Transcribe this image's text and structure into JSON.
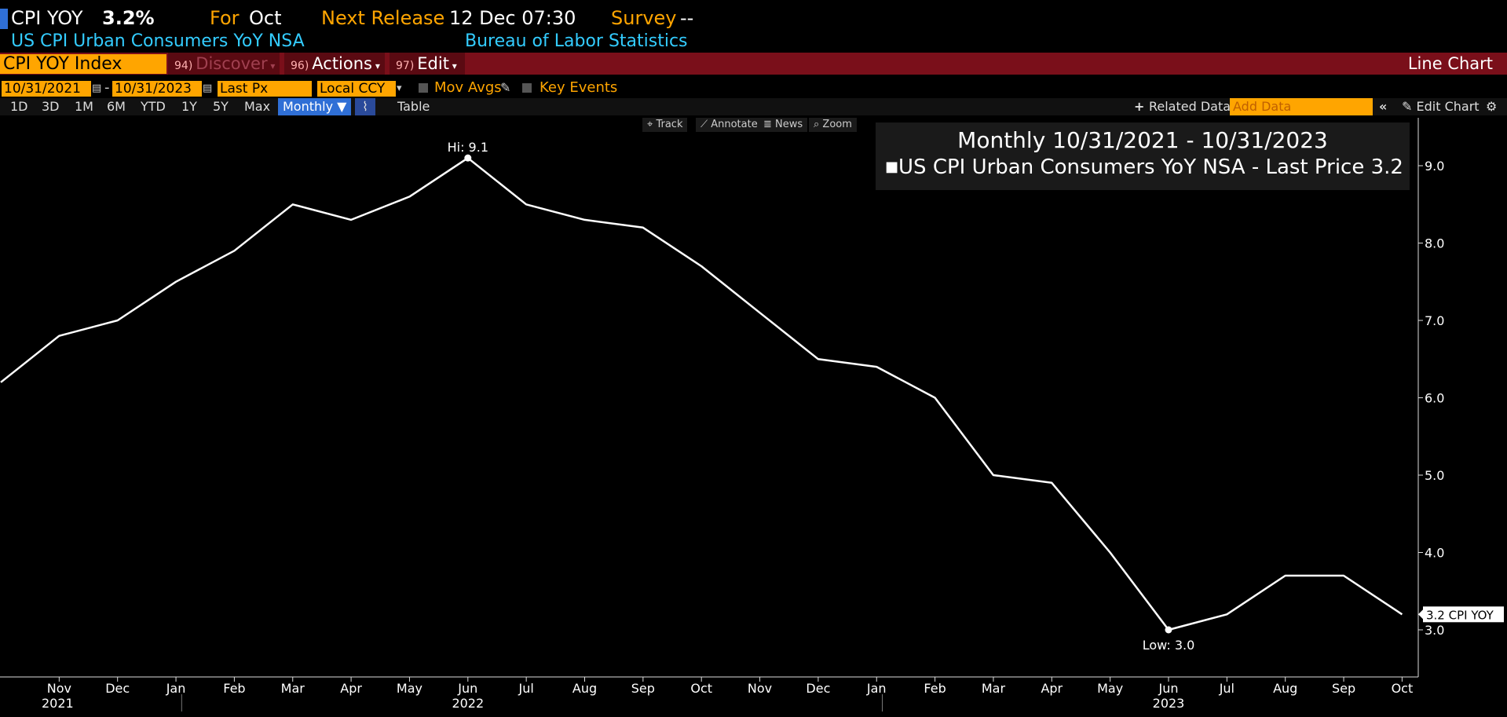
{
  "header": {
    "ticker": "CPI YOY",
    "last_value": "3.2%",
    "for_label": "For",
    "for_value": "Oct",
    "next_release_label": "Next Release",
    "next_release_value": "12 Dec 07:30",
    "survey_label": "Survey",
    "survey_value": "--",
    "description": "US CPI Urban Consumers YoY NSA",
    "source": "Bureau of Labor Statistics"
  },
  "toolbar": {
    "security": "CPI YOY Index",
    "discover_num": "94)",
    "discover_label": "Discover",
    "actions_num": "96)",
    "actions_label": "Actions",
    "edit_num": "97)",
    "edit_label": "Edit",
    "chart_type": "Line Chart"
  },
  "controls": {
    "start_date": "10/31/2021",
    "end_date": "10/31/2023",
    "date_separator": "-",
    "field": "Last Px",
    "currency": "Local CCY",
    "mov_avgs": "Mov Avgs",
    "key_events": "Key Events",
    "ranges": [
      "1D",
      "3D",
      "1M",
      "6M",
      "YTD",
      "1Y",
      "5Y",
      "Max"
    ],
    "period": "Monthly",
    "table": "Table",
    "related_data": "Related Data",
    "add_data_placeholder": "Add Data",
    "edit_chart": "Edit Chart"
  },
  "tools": {
    "track": "Track",
    "annotate": "Annotate",
    "news": "News",
    "zoom": "Zoom"
  },
  "legend": {
    "title": "Monthly 10/31/2021 - 10/31/2023",
    "series": "US CPI Urban Consumers YoY NSA - Last Price",
    "last": "3.2"
  },
  "colors": {
    "background": "#000000",
    "amber": "#ffa500",
    "cyan": "#33ccff",
    "toolbar_red": "#7a0f1a",
    "line": "#ffffff"
  },
  "chart_data": {
    "type": "line",
    "title": "",
    "xlabel": "",
    "ylabel": "",
    "ylim": [
      2.4,
      9.6
    ],
    "y_ticks": [
      "3.0",
      "4.0",
      "5.0",
      "6.0",
      "7.0",
      "8.0",
      "9.0"
    ],
    "x": [
      "2021-10",
      "2021-11",
      "2021-12",
      "2022-01",
      "2022-02",
      "2022-03",
      "2022-04",
      "2022-05",
      "2022-06",
      "2022-07",
      "2022-08",
      "2022-09",
      "2022-10",
      "2022-11",
      "2022-12",
      "2023-01",
      "2023-02",
      "2023-03",
      "2023-04",
      "2023-05",
      "2023-06",
      "2023-07",
      "2023-08",
      "2023-09",
      "2023-10"
    ],
    "x_tick_labels": [
      "Nov",
      "Dec",
      "Jan",
      "Feb",
      "Mar",
      "Apr",
      "May",
      "Jun",
      "Jul",
      "Aug",
      "Sep",
      "Oct",
      "Nov",
      "Dec",
      "Jan",
      "Feb",
      "Mar",
      "Apr",
      "May",
      "Jun",
      "Jul",
      "Aug",
      "Sep",
      "Oct"
    ],
    "year_labels": [
      "2021",
      "2022",
      "2023"
    ],
    "series": [
      {
        "name": "US CPI Urban Consumers YoY NSA - Last Price",
        "values": [
          6.2,
          6.8,
          7.0,
          7.5,
          7.9,
          8.5,
          8.3,
          8.6,
          9.1,
          8.5,
          8.3,
          8.2,
          7.7,
          7.1,
          6.5,
          6.4,
          6.0,
          5.0,
          4.9,
          4.0,
          3.0,
          3.2,
          3.7,
          3.7,
          3.2
        ]
      }
    ],
    "annotations": [
      {
        "label": "Hi: 9.1",
        "x": "2022-06",
        "y": 9.1
      },
      {
        "label": "Low: 3.0",
        "x": "2023-06",
        "y": 3.0
      }
    ],
    "last_tag": "3.2 CPI YOY",
    "grid": false,
    "legend_position": "top-right"
  }
}
